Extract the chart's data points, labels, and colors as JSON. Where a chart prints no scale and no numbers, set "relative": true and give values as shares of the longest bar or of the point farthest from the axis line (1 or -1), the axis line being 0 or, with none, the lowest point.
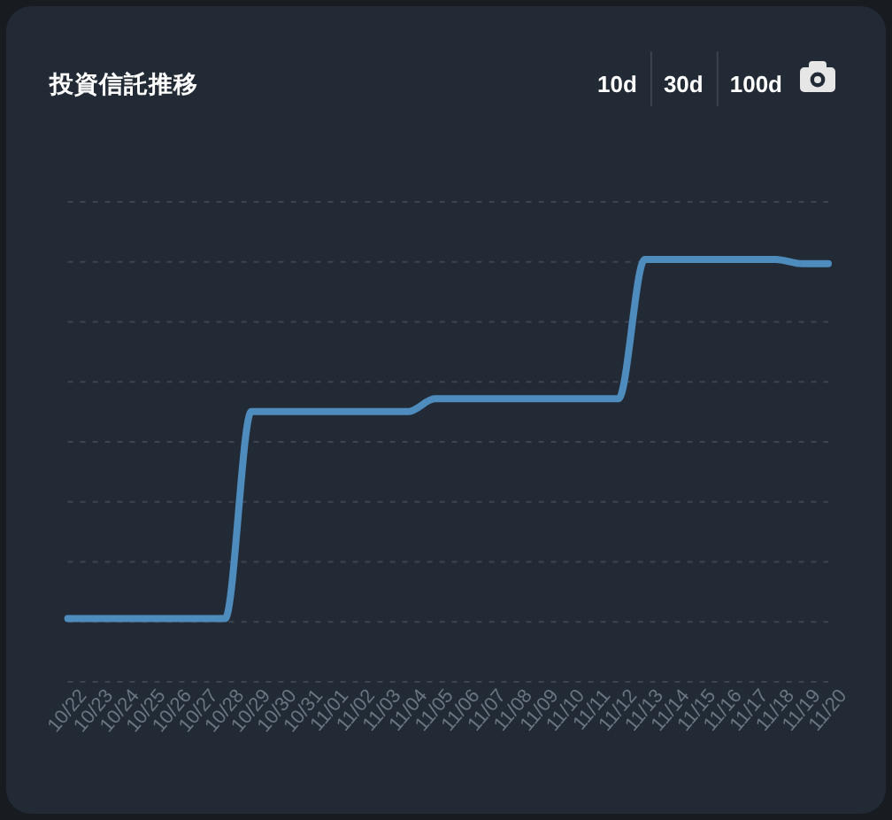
{
  "chart_data": {
    "type": "line",
    "title": "投資信託推移",
    "categories": [
      "10/22",
      "10/23",
      "10/24",
      "10/25",
      "10/26",
      "10/27",
      "10/28",
      "10/29",
      "10/30",
      "10/31",
      "11/01",
      "11/02",
      "11/03",
      "11/04",
      "11/05",
      "11/06",
      "11/07",
      "11/08",
      "11/09",
      "11/10",
      "11/11",
      "11/12",
      "11/13",
      "11/14",
      "11/15",
      "11/16",
      "11/17",
      "11/18",
      "11/19",
      "11/20"
    ],
    "series": [
      {
        "color": "#4f8cbe",
        "values": [
          0.15,
          0.15,
          0.15,
          0.15,
          0.15,
          0.15,
          0.15,
          0.64,
          0.64,
          0.64,
          0.64,
          0.64,
          0.64,
          0.64,
          0.67,
          0.67,
          0.67,
          0.67,
          0.67,
          0.67,
          0.67,
          0.67,
          1,
          1,
          1,
          1,
          1,
          1,
          0.99,
          0.99
        ]
      }
    ],
    "relative": true,
    "grid": "y",
    "annotations": [
      "10d",
      "30d",
      "100d"
    ]
  }
}
